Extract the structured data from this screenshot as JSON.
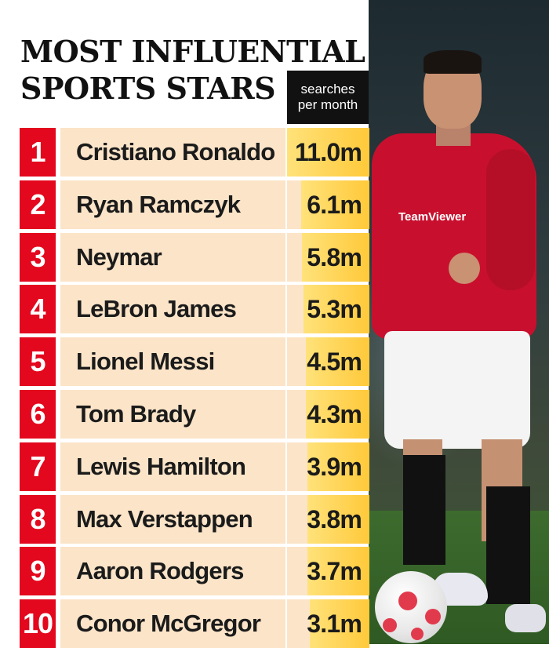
{
  "title_lines": [
    "MOST INFLUENTIAL",
    "SPORTS STARS"
  ],
  "column_header_lines": [
    "searches",
    "per month"
  ],
  "photo": {
    "sponsor_text": "TeamViewer"
  },
  "colors": {
    "rank_red": "#e3081e",
    "row_background": "#fbe4c8",
    "value_highlight": "#ffc93a",
    "header_black": "#111111"
  },
  "chart_data": {
    "type": "bar",
    "title": "MOST INFLUENTIAL SPORTS STARS",
    "ylabel": "searches per month",
    "categories": [
      "Cristiano Ronaldo",
      "Ryan Ramczyk",
      "Neymar",
      "LeBron James",
      "Lionel Messi",
      "Tom Brady",
      "Lewis Hamilton",
      "Max Verstappen",
      "Aaron Rodgers",
      "Conor McGregor"
    ],
    "ranks": [
      "1",
      "2",
      "3",
      "4",
      "5",
      "6",
      "7",
      "8",
      "9",
      "10"
    ],
    "value_labels": [
      "11.0m",
      "6.1m",
      "5.8m",
      "5.3m",
      "4.5m",
      "4.3m",
      "3.9m",
      "3.8m",
      "3.7m",
      "3.1m"
    ],
    "values": [
      11.0,
      6.1,
      5.8,
      5.3,
      4.5,
      4.3,
      3.9,
      3.8,
      3.7,
      3.1
    ]
  }
}
